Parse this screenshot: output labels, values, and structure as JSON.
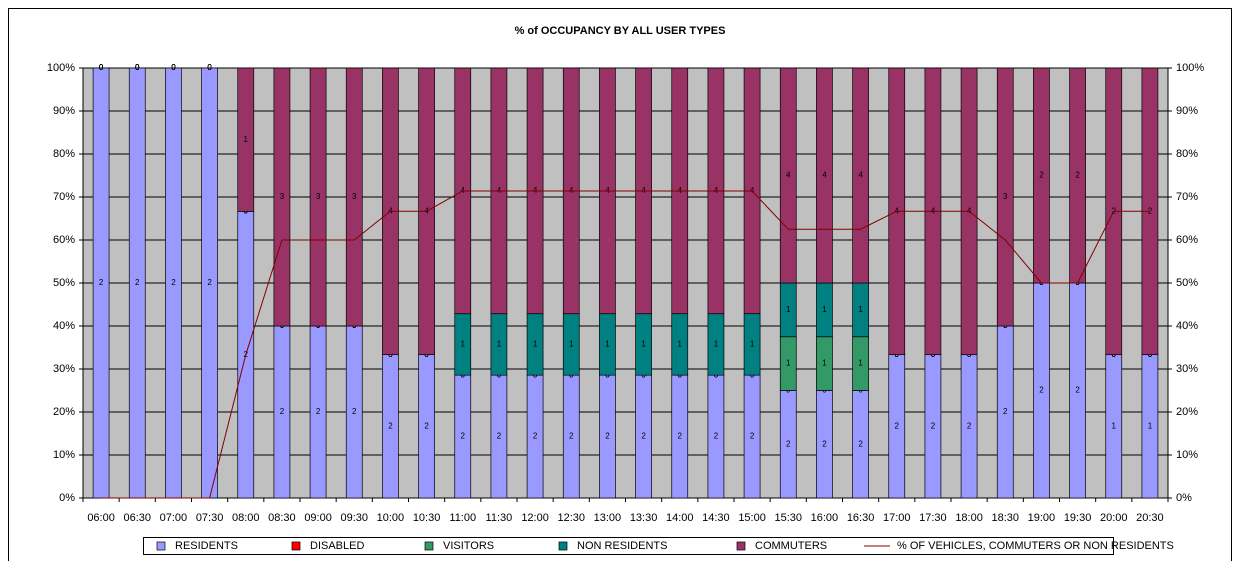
{
  "chart_data": {
    "type": "bar",
    "stacking": "percent",
    "title": "% of OCCUPANCY BY ALL USER TYPES",
    "categories": [
      "06:00",
      "06:30",
      "07:00",
      "07:30",
      "08:00",
      "08:30",
      "09:00",
      "09:30",
      "10:00",
      "10:30",
      "11:00",
      "11:30",
      "12:00",
      "12:30",
      "13:00",
      "13:30",
      "14:00",
      "14:30",
      "15:00",
      "15:30",
      "16:00",
      "16:30",
      "17:00",
      "17:30",
      "18:00",
      "18:30",
      "19:00",
      "19:30",
      "20:00",
      "20:30"
    ],
    "series": [
      {
        "name": "RESIDENTS",
        "color": "#9999ff",
        "values": [
          2,
          2,
          2,
          2,
          2,
          2,
          2,
          2,
          2,
          2,
          2,
          2,
          2,
          2,
          2,
          2,
          2,
          2,
          2,
          2,
          2,
          2,
          2,
          2,
          2,
          2,
          2,
          2,
          1,
          1
        ]
      },
      {
        "name": "DISABLED",
        "color": "#ff0000",
        "values": [
          0,
          0,
          0,
          0,
          0,
          0,
          0,
          0,
          0,
          0,
          0,
          0,
          0,
          0,
          0,
          0,
          0,
          0,
          0,
          0,
          0,
          0,
          0,
          0,
          0,
          0,
          0,
          0,
          0,
          0
        ]
      },
      {
        "name": "VISITORS",
        "color": "#339966",
        "values": [
          0,
          0,
          0,
          0,
          0,
          0,
          0,
          0,
          0,
          0,
          0,
          0,
          0,
          0,
          0,
          0,
          0,
          0,
          0,
          1,
          1,
          1,
          0,
          0,
          0,
          0,
          0,
          0,
          0,
          0
        ]
      },
      {
        "name": "NON RESIDENTS",
        "color": "#008080",
        "values": [
          0,
          0,
          0,
          0,
          0,
          0,
          0,
          0,
          0,
          0,
          1,
          1,
          1,
          1,
          1,
          1,
          1,
          1,
          1,
          1,
          1,
          1,
          0,
          0,
          0,
          0,
          0,
          0,
          0,
          0
        ]
      },
      {
        "name": "COMMUTERS",
        "color": "#993366",
        "values": [
          0,
          0,
          0,
          0,
          1,
          3,
          3,
          3,
          4,
          4,
          4,
          4,
          4,
          4,
          4,
          4,
          4,
          4,
          4,
          4,
          4,
          4,
          4,
          4,
          4,
          3,
          2,
          2,
          2,
          2
        ]
      },
      {
        "name": "% OF VEHICLES, COMMUTERS OR NON RESIDENTS",
        "type": "line",
        "color": "#800000",
        "values": [
          0,
          0,
          0,
          0,
          33.3,
          60,
          60,
          60,
          66.7,
          66.7,
          71.4,
          71.4,
          71.4,
          71.4,
          71.4,
          71.4,
          71.4,
          71.4,
          71.4,
          62.5,
          62.5,
          62.5,
          66.7,
          66.7,
          66.7,
          60,
          50,
          50,
          66.7,
          66.7
        ]
      }
    ],
    "ylim": [
      0,
      100
    ],
    "yticks": [
      {
        "value": 0,
        "label": "0%"
      },
      {
        "value": 10,
        "label": "10%"
      },
      {
        "value": 20,
        "label": "20%"
      },
      {
        "value": 30,
        "label": "30%"
      },
      {
        "value": 40,
        "label": "40%"
      },
      {
        "value": 50,
        "label": "50%"
      },
      {
        "value": 60,
        "label": "60%"
      },
      {
        "value": 70,
        "label": "70%"
      },
      {
        "value": 80,
        "label": "80%"
      },
      {
        "value": 90,
        "label": "90%"
      },
      {
        "value": 100,
        "label": "100%"
      }
    ],
    "y2lim": [
      0,
      100
    ],
    "y2ticks": [
      {
        "value": 0,
        "label": "0%"
      },
      {
        "value": 10,
        "label": "10%"
      },
      {
        "value": 20,
        "label": "20%"
      },
      {
        "value": 30,
        "label": "30%"
      },
      {
        "value": 40,
        "label": "40%"
      },
      {
        "value": 50,
        "label": "50%"
      },
      {
        "value": 60,
        "label": "60%"
      },
      {
        "value": 70,
        "label": "70%"
      },
      {
        "value": 80,
        "label": "80%"
      },
      {
        "value": 90,
        "label": "90%"
      },
      {
        "value": 100,
        "label": "100%"
      }
    ],
    "grid": true,
    "legend": "bottom",
    "plot_background": "#c0c0c0"
  }
}
